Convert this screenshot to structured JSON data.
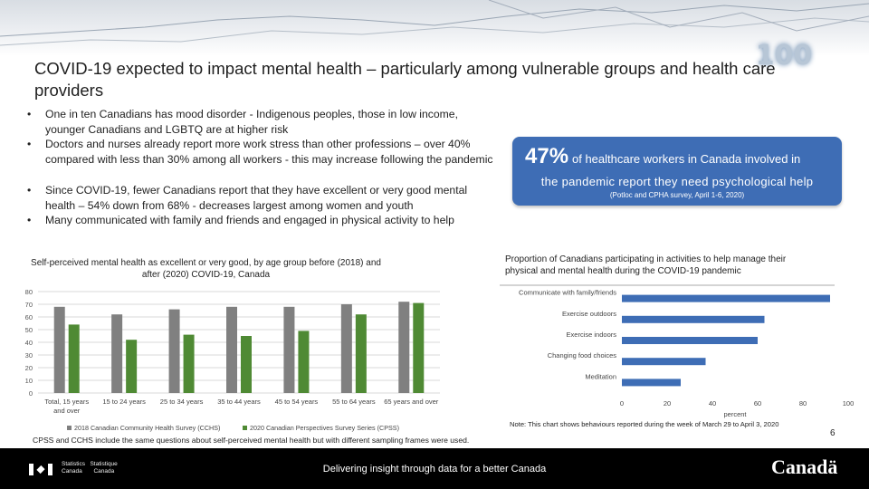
{
  "slide": {
    "title": "COVID-19 expected to impact mental health – particularly among vulnerable groups and health care providers",
    "badge": "100",
    "bullets": [
      "One in ten Canadians has mood disorder - Indigenous peoples, those in low income, younger Canadians and LGBTQ are at  higher risk",
      "Doctors and nurses already report more work stress than other professions – over 40% compared with less than 30% among all workers - this may increase following the pandemic",
      "Since COVID-19, fewer Canadians report that they have excellent or very good mental health – 54% down from 68% - decreases largest among women and youth",
      "Many communicated with family and friends and engaged in physical activity to help"
    ],
    "callout": {
      "percent": "47%",
      "line1": "of healthcare workers in Canada involved in",
      "line2": "the pandemic report they need psychological help",
      "source": "(Potloc and CPHA survey, April 1-6, 2020)"
    },
    "footnote": "CPSS and CCHS include the same questions about self-perceived mental health but with different sampling frames were used.",
    "note": "Note: This chart shows behaviours reported during the week of March 29 to April 3, 2020",
    "page_number": "6",
    "footer": {
      "statcan_en_1": "Statistics",
      "statcan_en_2": "Canada",
      "statcan_fr_1": "Statistique",
      "statcan_fr_2": "Canada",
      "tagline": "Delivering insight through data for a better Canada",
      "wordmark": "Canadä"
    }
  },
  "chart_data": [
    {
      "type": "bar",
      "title": "Self-perceived mental health as excellent or very good, by age group before (2018) and after (2020) COVID-19, Canada",
      "categories": [
        "Total, 15 years and over",
        "15 to 24 years",
        "25 to 34 years",
        "35 to 44 years",
        "45 to 54 years",
        "55 to 64 years",
        "65 years and over"
      ],
      "category_lines": [
        [
          "Total, 15 years",
          "and over"
        ],
        [
          "15 to 24 years"
        ],
        [
          "25 to 34 years"
        ],
        [
          "35 to 44 years"
        ],
        [
          "45 to 54 years"
        ],
        [
          "55 to 64 years"
        ],
        [
          "65 years and over"
        ]
      ],
      "series": [
        {
          "name": "2018 Canadian Community Health Survey (CCHS)",
          "color": "#808080",
          "values": [
            68,
            62,
            66,
            68,
            68,
            70,
            72
          ]
        },
        {
          "name": "2020 Canadian Perspectives Survey Series (CPSS)",
          "color": "#4f8a34",
          "values": [
            54,
            42,
            46,
            45,
            49,
            62,
            71
          ]
        }
      ],
      "ylim": [
        0,
        80
      ],
      "yticks": [
        0,
        10,
        20,
        30,
        40,
        50,
        60,
        70,
        80
      ],
      "grid": true,
      "legend": "bottom"
    },
    {
      "type": "bar",
      "orientation": "horizontal",
      "title": "Proportion of Canadians participating in activities to help manage their physical and mental health during the COVID-19 pandemic",
      "categories": [
        "Communicate with family/friends",
        "Exercise outdoors",
        "Exercise indoors",
        "Changing food choices",
        "Meditation"
      ],
      "values": [
        92,
        63,
        60,
        37,
        26
      ],
      "color": "#3e6db5",
      "xlim": [
        0,
        100
      ],
      "xticks": [
        0,
        20,
        40,
        60,
        80,
        100
      ],
      "xlabel": "percent"
    }
  ]
}
